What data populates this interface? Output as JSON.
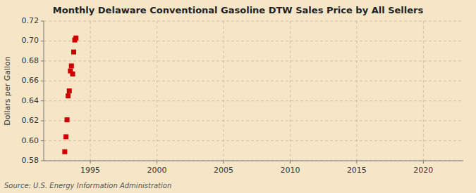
{
  "chart_data": {
    "type": "scatter",
    "title": "Monthly Delaware Conventional Gasoline DTW Sales Price by All Sellers",
    "ylabel": "Dollars per Gallon",
    "source": "Source: U.S. Energy Information Administration",
    "x": [
      1993.08,
      1993.17,
      1993.25,
      1993.33,
      1993.42,
      1993.5,
      1993.58,
      1993.67,
      1993.75,
      1993.83,
      1993.92
    ],
    "values": [
      0.589,
      0.604,
      0.621,
      0.645,
      0.65,
      0.67,
      0.675,
      0.667,
      0.689,
      0.701,
      0.703
    ],
    "color": "#cc0000",
    "marker": "square",
    "xlim": [
      1991.5,
      2023
    ],
    "ylim": [
      0.58,
      0.72
    ],
    "xticks": [
      1995,
      2000,
      2005,
      2010,
      2015,
      2020
    ],
    "yticks": [
      0.58,
      {
        "value": 0.6,
        "label": "0.60"
      },
      0.62,
      0.64,
      0.66,
      0.68,
      {
        "value": 0.7,
        "label": "0.70"
      },
      0.72
    ],
    "grid": true
  }
}
